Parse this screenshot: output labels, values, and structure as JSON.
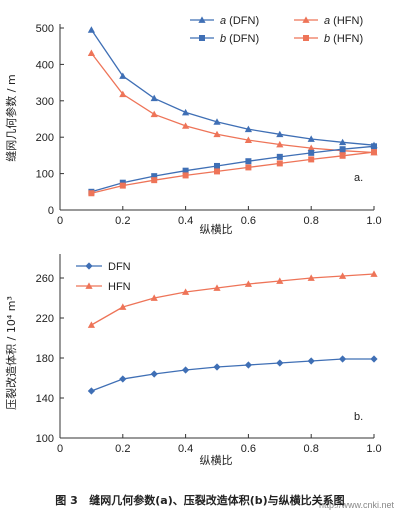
{
  "chart_data": [
    {
      "type": "line",
      "panel_label": "a.",
      "ylabel": "缝网几何参数 / m",
      "xlabel": "",
      "xlim": [
        0,
        1.0
      ],
      "ylim": [
        0,
        500
      ],
      "xticks": [
        0,
        0.2,
        0.4,
        0.6,
        0.8,
        1.0
      ],
      "xtick_labels": [
        "0",
        "0.2",
        "0.4",
        "0.6",
        "0.8",
        "1.0"
      ],
      "yticks": [
        0,
        100,
        200,
        300,
        400,
        500
      ],
      "ytick_labels": [
        "0",
        "100",
        "200",
        "300",
        "400",
        "500"
      ],
      "legend_position": "top-right",
      "x": [
        0.1,
        0.2,
        0.3,
        0.4,
        0.5,
        0.6,
        0.7,
        0.8,
        0.9,
        1.0
      ],
      "series": [
        {
          "name": "a (DFN)",
          "param": "a",
          "method": "(DFN)",
          "color": "#3f6fb5",
          "marker": "triangle",
          "values": [
            495,
            368,
            307,
            268,
            242,
            222,
            208,
            195,
            186,
            178
          ]
        },
        {
          "name": "a (HFN)",
          "param": "a",
          "method": "(HFN)",
          "color": "#ee7458",
          "marker": "triangle",
          "values": [
            431,
            318,
            263,
            231,
            208,
            192,
            180,
            170,
            163,
            158
          ]
        },
        {
          "name": "b (DFN)",
          "param": "b",
          "method": "(DFN)",
          "color": "#3f6fb5",
          "marker": "square",
          "values": [
            50,
            75,
            93,
            108,
            121,
            134,
            146,
            157,
            167,
            175
          ]
        },
        {
          "name": "b (HFN)",
          "param": "b",
          "method": "(HFN)",
          "color": "#ee7458",
          "marker": "square",
          "values": [
            46,
            67,
            82,
            95,
            106,
            117,
            128,
            139,
            149,
            159
          ]
        }
      ]
    },
    {
      "type": "line",
      "panel_label": "b.",
      "ylabel": "压裂改造体积 / 10⁴ m³",
      "xlabel": "纵横比",
      "xlim": [
        0,
        1.0
      ],
      "ylim": [
        100,
        280
      ],
      "xticks": [
        0,
        0.2,
        0.4,
        0.6,
        0.8,
        1.0
      ],
      "xtick_labels": [
        "0",
        "0.2",
        "0.4",
        "0.6",
        "0.8",
        "1.0"
      ],
      "yticks": [
        100,
        140,
        180,
        220,
        260
      ],
      "ytick_labels": [
        "100",
        "140",
        "180",
        "220",
        "260"
      ],
      "legend_position": "top-left",
      "x": [
        0.1,
        0.2,
        0.3,
        0.4,
        0.5,
        0.6,
        0.7,
        0.8,
        0.9,
        1.0
      ],
      "series": [
        {
          "name": "DFN",
          "color": "#3f6fb5",
          "marker": "diamond",
          "values": [
            147,
            159,
            164,
            168,
            171,
            173,
            175,
            177,
            179,
            179
          ]
        },
        {
          "name": "HFN",
          "color": "#ee7458",
          "marker": "triangle",
          "values": [
            213,
            231,
            240,
            246,
            250,
            254,
            257,
            260,
            262,
            264
          ]
        }
      ]
    }
  ],
  "top_xlabel": "纵横比",
  "caption": "图 3   缝网几何参数(a)、压裂改造体积(b)与纵横比关系图",
  "watermark": "http://www.cnki.net"
}
